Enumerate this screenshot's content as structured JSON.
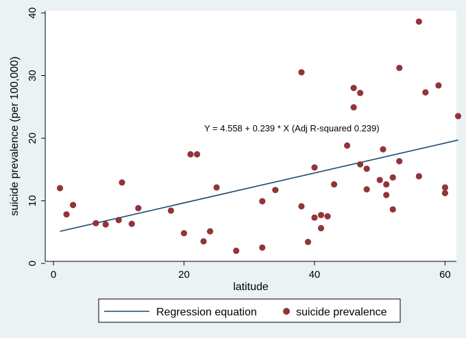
{
  "chart_data": {
    "type": "scatter",
    "xlabel": "latitude",
    "ylabel": "suicide prevalence (per 100,000)",
    "xlim": [
      0,
      63
    ],
    "ylim": [
      0,
      40
    ],
    "x_ticks": [
      0,
      20,
      40,
      60
    ],
    "y_ticks": [
      0,
      10,
      20,
      30,
      40
    ],
    "grid": false,
    "annotation": "Y = 4.558 + 0.239 * X (Adj R-squared 0.239)",
    "regression": {
      "name": "Regression equation",
      "intercept": 4.558,
      "slope": 0.239,
      "x_range": [
        1,
        62
      ],
      "color": "#1a476f"
    },
    "points_series": {
      "name": "suicide prevalence",
      "color": "#90353b",
      "points": [
        {
          "x": 1,
          "y": 11.7
        },
        {
          "x": 2,
          "y": 7.5
        },
        {
          "x": 3,
          "y": 9.0
        },
        {
          "x": 6.5,
          "y": 6.1
        },
        {
          "x": 8,
          "y": 5.9
        },
        {
          "x": 10,
          "y": 6.6
        },
        {
          "x": 10.5,
          "y": 12.6
        },
        {
          "x": 12,
          "y": 6.0
        },
        {
          "x": 13,
          "y": 8.5
        },
        {
          "x": 18,
          "y": 8.1
        },
        {
          "x": 20,
          "y": 4.5
        },
        {
          "x": 21,
          "y": 17.1
        },
        {
          "x": 22,
          "y": 17.1
        },
        {
          "x": 23,
          "y": 3.2
        },
        {
          "x": 24,
          "y": 4.8
        },
        {
          "x": 25,
          "y": 11.8
        },
        {
          "x": 28,
          "y": 1.7
        },
        {
          "x": 32,
          "y": 9.6
        },
        {
          "x": 32,
          "y": 2.2
        },
        {
          "x": 34,
          "y": 11.4
        },
        {
          "x": 38,
          "y": 30.2
        },
        {
          "x": 38,
          "y": 8.8
        },
        {
          "x": 39,
          "y": 3.1
        },
        {
          "x": 40,
          "y": 15.0
        },
        {
          "x": 40,
          "y": 7.0
        },
        {
          "x": 41,
          "y": 7.4
        },
        {
          "x": 41,
          "y": 5.3
        },
        {
          "x": 42,
          "y": 7.2
        },
        {
          "x": 43,
          "y": 12.3
        },
        {
          "x": 45,
          "y": 18.5
        },
        {
          "x": 46,
          "y": 27.7
        },
        {
          "x": 46,
          "y": 24.6
        },
        {
          "x": 47,
          "y": 26.9
        },
        {
          "x": 47,
          "y": 15.5
        },
        {
          "x": 48,
          "y": 14.8
        },
        {
          "x": 48,
          "y": 11.5
        },
        {
          "x": 50,
          "y": 13.0
        },
        {
          "x": 50.5,
          "y": 17.9
        },
        {
          "x": 51,
          "y": 12.3
        },
        {
          "x": 51,
          "y": 10.6
        },
        {
          "x": 52,
          "y": 13.4
        },
        {
          "x": 52,
          "y": 8.3
        },
        {
          "x": 53,
          "y": 30.9
        },
        {
          "x": 53,
          "y": 16.0
        },
        {
          "x": 56,
          "y": 38.3
        },
        {
          "x": 56,
          "y": 13.6
        },
        {
          "x": 57,
          "y": 27.0
        },
        {
          "x": 59,
          "y": 28.1
        },
        {
          "x": 60,
          "y": 11.8
        },
        {
          "x": 60,
          "y": 10.9
        },
        {
          "x": 62,
          "y": 23.2
        }
      ]
    }
  }
}
